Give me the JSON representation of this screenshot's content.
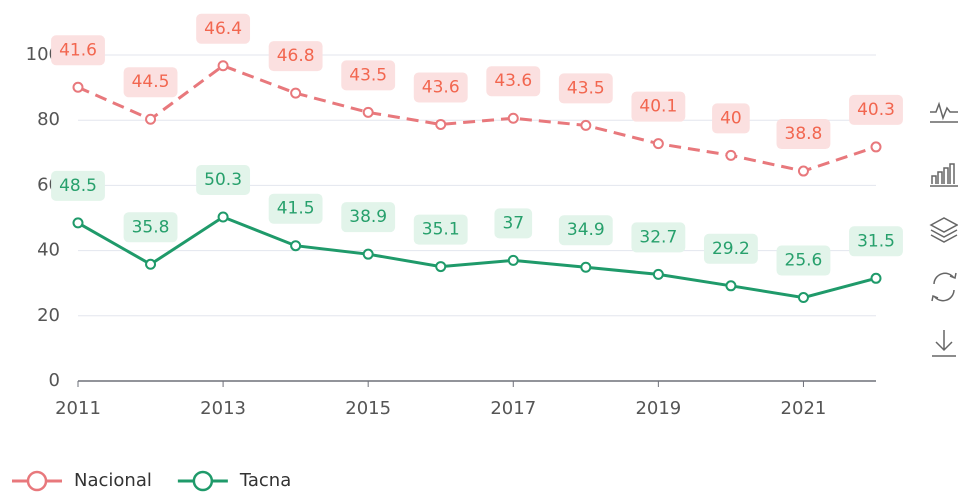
{
  "chart_data": {
    "type": "line",
    "stacked": true,
    "x": [
      2011,
      2012,
      2013,
      2014,
      2015,
      2016,
      2017,
      2018,
      2019,
      2020,
      2021,
      2022
    ],
    "series": [
      {
        "name": "Nacional",
        "color": "#e8787c",
        "dashed": true,
        "label_color": "#f2664f",
        "label_background": "#fbe0e0",
        "values": [
          41.6,
          44.5,
          46.4,
          46.8,
          43.5,
          43.6,
          43.6,
          43.5,
          40.1,
          40,
          38.8,
          40.3
        ]
      },
      {
        "name": "Tacna",
        "color": "#1f9a6a",
        "dashed": false,
        "label_color": "#27a06c",
        "label_background": "#e2f4ea",
        "values": [
          48.5,
          35.8,
          50.3,
          41.5,
          38.9,
          35.1,
          37,
          34.9,
          32.7,
          29.2,
          25.6,
          31.5
        ]
      }
    ],
    "xlim": [
      2011,
      2022
    ],
    "xticks": [
      2011,
      2013,
      2015,
      2017,
      2019,
      2021
    ],
    "ylim": [
      0,
      100
    ],
    "yticks": [
      0,
      20,
      40,
      60,
      80,
      100
    ],
    "grid": true
  }
}
